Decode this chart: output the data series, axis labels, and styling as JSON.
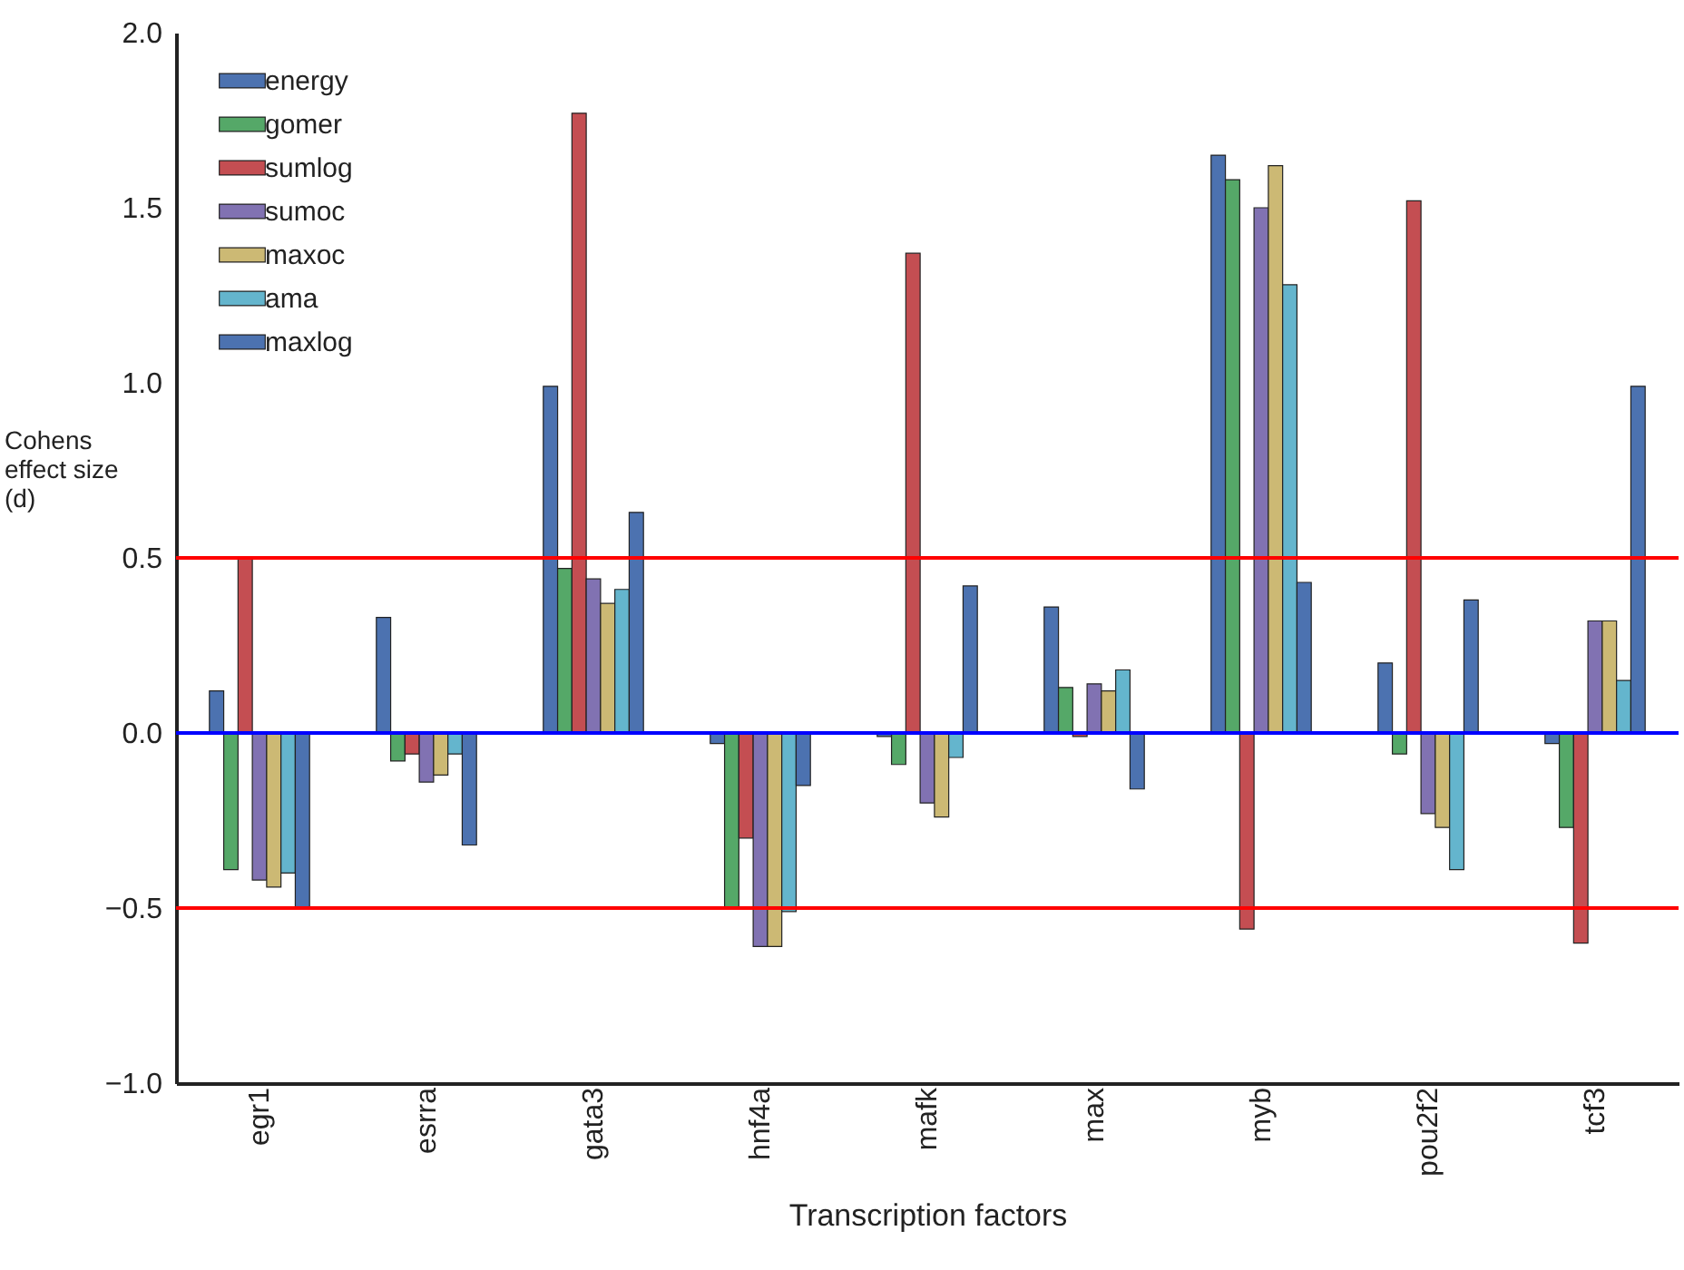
{
  "chart_data": {
    "type": "bar",
    "xlabel": "Transcription factors",
    "ylabel": "Cohens effect size (d)",
    "categories": [
      "egr1",
      "esrra",
      "gata3",
      "hnf4a",
      "mafk",
      "max",
      "myb",
      "pou2f2",
      "tcf3"
    ],
    "series": [
      {
        "name": "energy",
        "color": "#4c72b0",
        "values": [
          0.12,
          0.33,
          0.99,
          -0.03,
          -0.01,
          0.36,
          1.65,
          0.2,
          -0.03
        ]
      },
      {
        "name": "gomer",
        "color": "#55a868",
        "values": [
          -0.39,
          -0.08,
          0.47,
          -0.5,
          -0.09,
          0.13,
          1.58,
          -0.06,
          -0.27
        ]
      },
      {
        "name": "sumlog",
        "color": "#c44e52",
        "values": [
          0.5,
          -0.06,
          1.77,
          -0.3,
          1.37,
          -0.01,
          -0.56,
          1.52,
          -0.6
        ]
      },
      {
        "name": "sumoc",
        "color": "#8172b2",
        "values": [
          -0.42,
          -0.14,
          0.44,
          -0.61,
          -0.2,
          0.14,
          1.5,
          -0.23,
          0.32
        ]
      },
      {
        "name": "maxoc",
        "color": "#ccb974",
        "values": [
          -0.44,
          -0.12,
          0.37,
          -0.61,
          -0.24,
          0.12,
          1.62,
          -0.27,
          0.32
        ]
      },
      {
        "name": "ama",
        "color": "#64b5cd",
        "values": [
          -0.4,
          -0.06,
          0.41,
          -0.51,
          -0.07,
          0.18,
          1.28,
          -0.39,
          0.15
        ]
      },
      {
        "name": "maxlog",
        "color": "#4c72b0",
        "values": [
          -0.5,
          -0.32,
          0.63,
          -0.15,
          0.42,
          -0.16,
          0.43,
          0.38,
          0.99
        ]
      }
    ],
    "ylim": [
      -1.0,
      2.0
    ],
    "yticks": [
      {
        "value": -1.0,
        "label": "−1.0"
      },
      {
        "value": -0.5,
        "label": "−0.5"
      },
      {
        "value": 0,
        "label": "0.0"
      },
      {
        "value": 0.5,
        "label": "0.5"
      },
      {
        "value": 1.0,
        "label": "1.0"
      },
      {
        "value": 1.5,
        "label": "1.5"
      },
      {
        "value": 2.0,
        "label": "2.0"
      }
    ],
    "ref_lines": [
      {
        "axis": "y",
        "value": 0.5,
        "color": "#ff0000"
      },
      {
        "axis": "y",
        "value": -0.5,
        "color": "#ff0000"
      },
      {
        "axis": "y",
        "value": 0,
        "color": "#0000ff"
      }
    ],
    "grid": false,
    "legend": "top left"
  }
}
